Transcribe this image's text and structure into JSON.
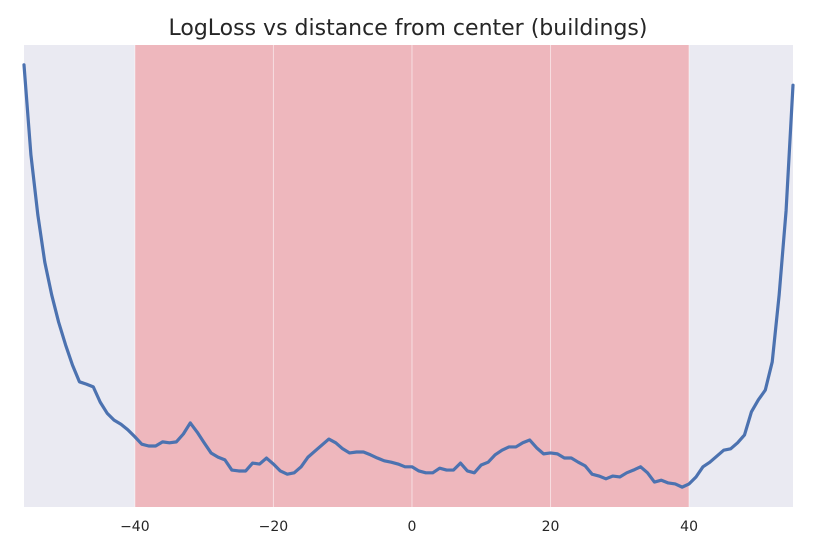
{
  "chart_data": {
    "type": "line",
    "title": "LogLoss vs distance from center (buildings)",
    "x": [
      -56,
      -55,
      -54,
      -53,
      -52,
      -51,
      -50,
      -49,
      -48,
      -47,
      -46,
      -45,
      -44,
      -43,
      -42,
      -41,
      -40,
      -39,
      -38,
      -37,
      -36,
      -35,
      -34,
      -33,
      -32,
      -31,
      -30,
      -29,
      -28,
      -27,
      -26,
      -25,
      -24,
      -23,
      -22,
      -21,
      -20,
      -19,
      -18,
      -17,
      -16,
      -15,
      -14,
      -13,
      -12,
      -11,
      -10,
      -9,
      -8,
      -7,
      -6,
      -5,
      -4,
      -3,
      -2,
      -1,
      0,
      1,
      2,
      3,
      4,
      5,
      6,
      7,
      8,
      9,
      10,
      11,
      12,
      13,
      14,
      15,
      16,
      17,
      18,
      19,
      20,
      21,
      22,
      23,
      24,
      25,
      26,
      27,
      28,
      29,
      30,
      31,
      32,
      33,
      34,
      35,
      36,
      37,
      38,
      39,
      40,
      41,
      42,
      43,
      44,
      45,
      46,
      47,
      48,
      49,
      50,
      51,
      52,
      53,
      54,
      55
    ],
    "series": [
      {
        "color": "#4c72b0",
        "values": [
          95.7,
          76.2,
          63.2,
          53.0,
          45.9,
          40.0,
          35.1,
          30.7,
          27.1,
          26.6,
          26.0,
          22.7,
          20.3,
          18.8,
          17.9,
          16.7,
          15.2,
          13.6,
          13.2,
          13.2,
          14.1,
          13.9,
          14.1,
          15.8,
          18.2,
          16.2,
          13.9,
          11.7,
          10.8,
          10.2,
          8.0,
          7.8,
          7.8,
          9.5,
          9.3,
          10.6,
          9.3,
          7.8,
          7.1,
          7.4,
          8.7,
          10.8,
          12.1,
          13.4,
          14.7,
          13.9,
          12.6,
          11.7,
          11.9,
          11.9,
          11.3,
          10.6,
          10.0,
          9.7,
          9.3,
          8.7,
          8.7,
          7.8,
          7.4,
          7.4,
          8.4,
          8.0,
          8.0,
          9.5,
          7.8,
          7.4,
          9.1,
          9.7,
          11.3,
          12.3,
          13.0,
          13.0,
          13.9,
          14.5,
          12.8,
          11.5,
          11.7,
          11.5,
          10.6,
          10.6,
          9.7,
          8.9,
          7.1,
          6.7,
          6.1,
          6.7,
          6.5,
          7.4,
          8.0,
          8.7,
          7.4,
          5.4,
          5.8,
          5.2,
          5.0,
          4.3,
          5.0,
          6.5,
          8.7,
          9.7,
          11.0,
          12.3,
          12.6,
          13.9,
          15.6,
          20.6,
          23.2,
          25.3,
          31.4,
          45.9,
          64.1,
          91.3
        ]
      }
    ],
    "xlim": [
      -56,
      55
    ],
    "xticks": [
      {
        "value": -40,
        "label": "−40"
      },
      {
        "value": -20,
        "label": "−20"
      },
      0,
      20,
      40
    ],
    "ylim": [
      0,
      100
    ],
    "grid": true,
    "span": {
      "xmin": -40,
      "xmax": 40,
      "color": "#eeb7bd"
    }
  }
}
